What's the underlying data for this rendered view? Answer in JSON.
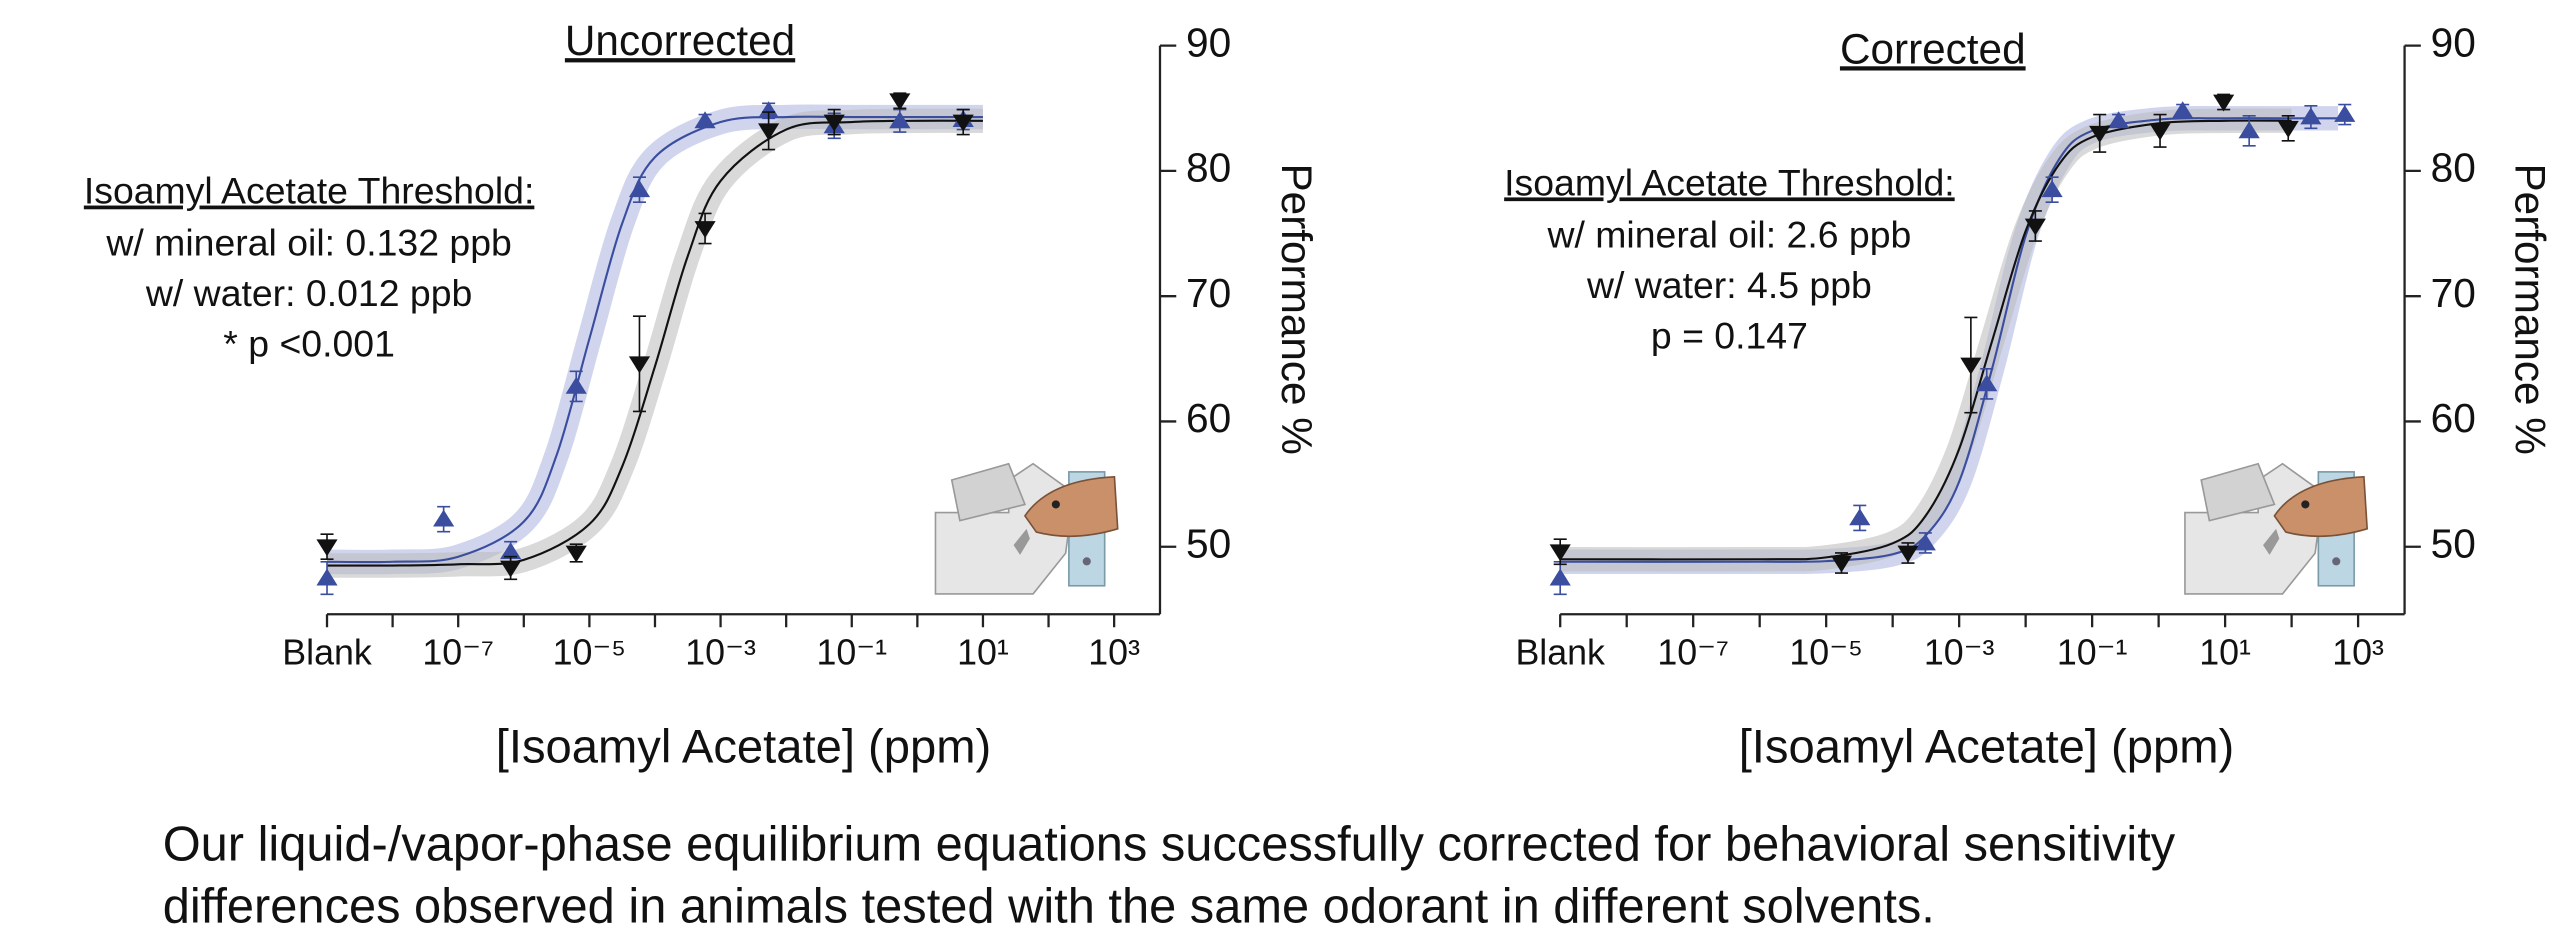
{
  "chart_data": [
    {
      "type": "scatter",
      "title": "Uncorrected",
      "xlabel": "[Isoamyl Acetate] (ppm)",
      "ylabel": "Performance %",
      "log_x": true,
      "xlim": [
        1e-09,
        5000
      ],
      "ylim": [
        45,
        90
      ],
      "xticks": [
        {
          "value": 1e-09,
          "label": "Blank"
        },
        {
          "value": 1e-07,
          "label": "10⁻⁷"
        },
        {
          "value": 1e-05,
          "label": "10⁻⁵"
        },
        {
          "value": 0.001,
          "label": "10⁻³"
        },
        {
          "value": 0.1,
          "label": "10⁻¹"
        },
        {
          "value": 10,
          "label": "10¹"
        },
        {
          "value": 1000,
          "label": "10³"
        }
      ],
      "xminor_ticks": [
        1e-08,
        1e-06,
        0.0001,
        0.01,
        1,
        100
      ],
      "yticks": [
        50,
        60,
        70,
        80,
        90
      ],
      "series": [
        {
          "color": "#3a4d9f",
          "marker": "triangle-up",
          "x": [
            1e-09,
            6e-08,
            6.3e-07,
            6.3e-06,
            5.8e-05,
            0.00058,
            0.0054,
            0.054,
            0.54,
            5
          ],
          "values": [
            47.5,
            52.2,
            49.6,
            62.8,
            78.5,
            84,
            84.8,
            83.6,
            84,
            84.1
          ],
          "errors": [
            1.3,
            1.0,
            0.8,
            1.2,
            1.0,
            0.5,
            0.6,
            1.0,
            0.9,
            0.8
          ]
        },
        {
          "color": "#111111",
          "marker": "triangle-down",
          "x": [
            1e-09,
            6.3e-07,
            6.3e-06,
            5.8e-05,
            0.00058,
            0.0054,
            0.054,
            0.54,
            5
          ],
          "values": [
            50,
            48.3,
            49.5,
            64.6,
            75.4,
            83.2,
            83.9,
            85.6,
            83.9
          ],
          "errors": [
            1.0,
            0.9,
            0.7,
            3.8,
            1.2,
            1.5,
            1.0,
            0.6,
            1.0
          ]
        }
      ],
      "fits": [
        {
          "color": "#3a4d9f",
          "band_color": "#aab3df",
          "x": [
            1e-09,
            1e-08,
            1e-07,
            1e-06,
            3.16e-06,
            1e-05,
            3.16e-05,
            0.0001,
            0.001,
            0.01,
            0.1,
            1,
            10
          ],
          "values": [
            48.8,
            48.8,
            49.2,
            52.0,
            57.3,
            66.6,
            75.8,
            81.1,
            83.9,
            84.3,
            84.3,
            84.3,
            84.3
          ]
        },
        {
          "color": "#111111",
          "band_color": "#b9b9b9",
          "x": [
            1e-09,
            1e-08,
            1e-07,
            1e-06,
            1e-05,
            3.16e-05,
            0.0001,
            0.000316,
            0.001,
            0.01,
            0.1,
            1,
            10
          ],
          "values": [
            48.5,
            48.5,
            48.6,
            48.95,
            51.8,
            56.4,
            64.4,
            73.2,
            79.2,
            83.3,
            83.9,
            84.0,
            84.0
          ]
        }
      ],
      "annotation": {
        "heading": "Isoamyl Acetate Threshold:",
        "lines": [
          {
            "text": "w/ mineral oil:  0.132 ppb",
            "color": "#111111"
          },
          {
            "text": "w/ water: 0.012 ppb",
            "color": "#3a4d9f"
          },
          {
            "text": "* p <0.001",
            "color": "#111111"
          }
        ]
      }
    },
    {
      "type": "scatter",
      "title": "Corrected",
      "xlabel": "[Isoamyl Acetate] (ppm)",
      "ylabel": "Performance %",
      "log_x": true,
      "xlim": [
        1e-09,
        5000
      ],
      "ylim": [
        45,
        90
      ],
      "xticks": [
        {
          "value": 1e-09,
          "label": "Blank"
        },
        {
          "value": 1e-07,
          "label": "10⁻⁷"
        },
        {
          "value": 1e-05,
          "label": "10⁻⁵"
        },
        {
          "value": 0.001,
          "label": "10⁻³"
        },
        {
          "value": 0.1,
          "label": "10⁻¹"
        },
        {
          "value": 10,
          "label": "10¹"
        },
        {
          "value": 1000,
          "label": "10³"
        }
      ],
      "xminor_ticks": [
        1e-08,
        1e-06,
        0.0001,
        0.01,
        1,
        100
      ],
      "yticks": [
        50,
        60,
        70,
        80,
        90
      ],
      "series": [
        {
          "color": "#3a4d9f",
          "marker": "triangle-up",
          "x": [
            1e-09,
            3.2e-05,
            0.00031,
            0.0026,
            0.025,
            0.25,
            2.3,
            23,
            195,
            630
          ],
          "values": [
            47.5,
            52.3,
            50.3,
            63,
            78.5,
            84,
            84.8,
            83.2,
            84.3,
            84.5
          ],
          "errors": [
            1.3,
            1.0,
            0.8,
            1.2,
            1.0,
            0.5,
            0.5,
            1.2,
            0.9,
            0.8
          ]
        },
        {
          "color": "#111111",
          "marker": "triangle-down",
          "x": [
            1e-09,
            1.7e-05,
            0.00017,
            0.0015,
            0.014,
            0.13,
            1.05,
            9.5,
            89
          ],
          "values": [
            49.6,
            48.7,
            49.5,
            64.5,
            75.6,
            83,
            83.2,
            85.5,
            83.4
          ],
          "errors": [
            1.0,
            0.8,
            0.8,
            3.8,
            1.2,
            1.5,
            1.3,
            0.6,
            1.0
          ]
        }
      ],
      "fits": [
        {
          "color": "#3a4d9f",
          "band_color": "#aab3df",
          "x": [
            1e-09,
            1e-06,
            1e-05,
            0.0001,
            0.000316,
            0.001,
            0.00316,
            0.01,
            0.0316,
            0.1,
            1,
            10,
            100,
            500
          ],
          "values": [
            48.8,
            48.8,
            48.85,
            49.4,
            50.9,
            55.2,
            64.3,
            74.8,
            80.9,
            83.2,
            84.1,
            84.2,
            84.2,
            84.2
          ]
        },
        {
          "color": "#111111",
          "band_color": "#b9b9b9",
          "x": [
            1e-09,
            1e-06,
            1e-05,
            0.0001,
            0.000316,
            0.001,
            0.00316,
            0.01,
            0.0316,
            0.1,
            1,
            10,
            100
          ],
          "values": [
            49.0,
            49.0,
            49.15,
            50.27,
            52.5,
            57.8,
            66.5,
            75.2,
            80.5,
            82.7,
            83.8,
            84.0,
            84.0
          ]
        }
      ],
      "annotation": {
        "heading": "Isoamyl Acetate Threshold:",
        "lines": [
          {
            "text": "w/ mineral oil:  2.6 ppb",
            "color": "#111111"
          },
          {
            "text": "w/ water: 4.5 ppb",
            "color": "#3a4d9f"
          },
          {
            "text": "p  = 0.147",
            "color": "#111111"
          }
        ]
      }
    }
  ],
  "caption": [
    "Our liquid-/vapor-phase equilibrium equations successfully corrected for behavioral sensitivity",
    "differences observed in animals tested with the same odorant in different solvents."
  ]
}
